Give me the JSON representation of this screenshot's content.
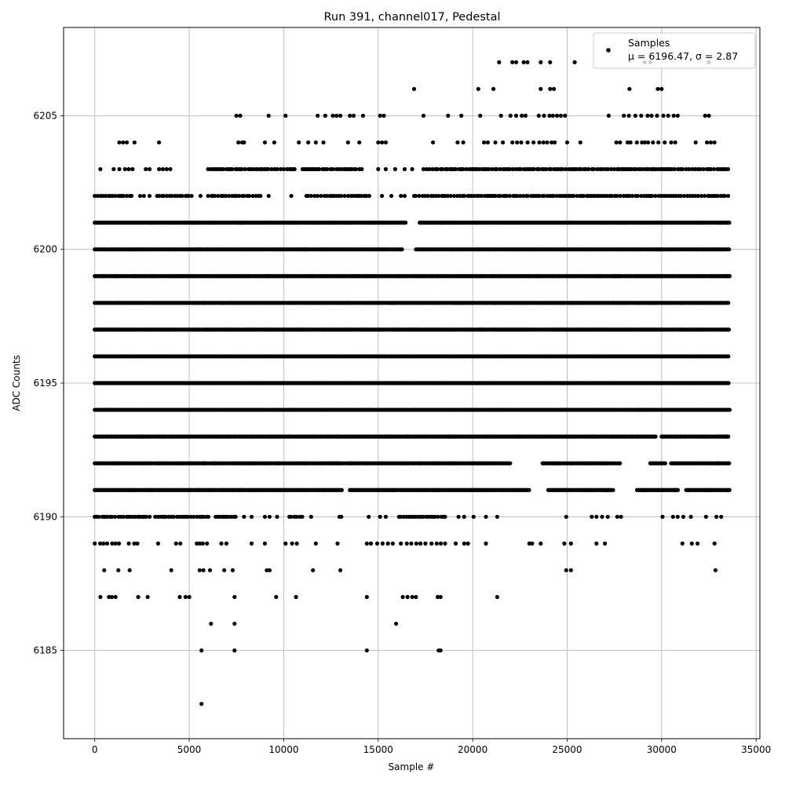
{
  "chart_data": {
    "type": "scatter",
    "title": "Run 391, channel017, Pedestal",
    "xlabel": "Sample #",
    "ylabel": "ADC Counts",
    "xlim": [
      -1650,
      35200
    ],
    "ylim": [
      6181.7,
      6208.3
    ],
    "xticks": [
      0,
      5000,
      10000,
      15000,
      20000,
      25000,
      30000,
      35000
    ],
    "yticks": [
      6185,
      6190,
      6195,
      6200,
      6205
    ],
    "grid": true,
    "legend": {
      "placement": "top-right",
      "entries": [
        "Samples",
        "μ = 6196.47, σ = 2.87"
      ]
    },
    "series": [
      {
        "name": "Samples",
        "color": "#000000",
        "marker": "circle",
        "x_range": [
          0,
          33600
        ],
        "sample_count": 33600,
        "mean": 6196.47,
        "sigma": 2.87,
        "level_occupancy": [
          {
            "y": 6183,
            "density": "single",
            "x": [
              5650
            ]
          },
          {
            "y": 6185,
            "density": "sparse",
            "x": [
              5650,
              7400,
              14400,
              18200,
              18300
            ]
          },
          {
            "y": 6186,
            "density": "sparse",
            "x": [
              6150,
              7400,
              15950
            ]
          },
          {
            "y": 6187,
            "density": "sparse",
            "x": [
              300,
              750,
              900,
              1100,
              2300,
              2800,
              4500,
              4800,
              5000,
              7400,
              9600,
              10650,
              14400,
              16300,
              16550,
              16800,
              17000,
              18150,
              18300,
              21300
            ]
          },
          {
            "y": 6188,
            "density": "sparse",
            "x": [
              500,
              1250,
              1850,
              4050,
              5550,
              5750,
              6100,
              6850,
              7300,
              9100,
              9250,
              11550,
              13000,
              24950,
              25200,
              32850
            ]
          },
          {
            "y": 6189,
            "density": "sparse",
            "x_ranges": [
              [
                0,
                1400
              ],
              [
                1800,
                2400
              ],
              [
                4300,
                4800
              ],
              [
                5400,
                6100
              ],
              [
                6700,
                7200
              ],
              [
                10100,
                11000
              ],
              [
                14400,
                15800
              ],
              [
                16200,
                18600
              ]
            ],
            "x": [
              3350,
              8300,
              9000,
              11700,
              12850,
              19100,
              19550,
              19750,
              20700,
              23000,
              23150,
              23600,
              24850,
              25200,
              26550,
              27000,
              31100,
              31600,
              31900,
              32800
            ]
          },
          {
            "y": 6190,
            "density": "medium",
            "x_ranges": [
              [
                0,
                3000
              ],
              [
                3200,
                6100
              ],
              [
                6400,
                7600
              ],
              [
                10300,
                11000
              ],
              [
                16100,
                18600
              ]
            ],
            "x": [
              7900,
              8300,
              9000,
              9250,
              9650,
              11450,
              12950,
              13050,
              14500,
              15100,
              15400,
              19250,
              19550,
              20050,
              20700,
              21300,
              24950,
              26300,
              26550,
              26850,
              27150,
              27650,
              27850,
              30050,
              30600,
              30850,
              31150,
              31550,
              32350,
              32900,
              33150
            ]
          },
          {
            "y": 6191,
            "density": "dense",
            "x_ranges": [
              [
                0,
                13100
              ],
              [
                13500,
                23000
              ],
              [
                24000,
                27500
              ],
              [
                28700,
                30900
              ],
              [
                31300,
                33600
              ]
            ]
          },
          {
            "y": 6192,
            "density": "dense",
            "x_ranges": [
              [
                0,
                22000
              ],
              [
                23700,
                27800
              ],
              [
                29400,
                30200
              ],
              [
                30500,
                33600
              ]
            ]
          },
          {
            "y": 6193,
            "density": "dense",
            "x_ranges": [
              [
                0,
                29700
              ],
              [
                30000,
                33600
              ]
            ]
          },
          {
            "y": 6194,
            "density": "dense",
            "x_ranges": [
              [
                0,
                33600
              ]
            ]
          },
          {
            "y": 6195,
            "density": "dense",
            "x_ranges": [
              [
                0,
                33600
              ]
            ]
          },
          {
            "y": 6196,
            "density": "dense",
            "x_ranges": [
              [
                0,
                33600
              ]
            ]
          },
          {
            "y": 6197,
            "density": "dense",
            "x_ranges": [
              [
                0,
                33600
              ]
            ]
          },
          {
            "y": 6198,
            "density": "dense",
            "x_ranges": [
              [
                0,
                33600
              ]
            ]
          },
          {
            "y": 6199,
            "density": "dense",
            "x_ranges": [
              [
                0,
                33600
              ]
            ]
          },
          {
            "y": 6200,
            "density": "dense",
            "x_ranges": [
              [
                0,
                16300
              ],
              [
                17000,
                33600
              ]
            ]
          },
          {
            "y": 6201,
            "density": "dense",
            "x_ranges": [
              [
                0,
                16500
              ],
              [
                17200,
                33600
              ]
            ]
          },
          {
            "y": 6202,
            "density": "medium",
            "x_ranges": [
              [
                0,
                2000
              ],
              [
                3300,
                5200
              ],
              [
                6000,
                8800
              ],
              [
                11200,
                14600
              ],
              [
                16900,
                33600
              ]
            ],
            "x": [
              2400,
              2600,
              2900,
              5600,
              9200,
              10400,
              15200,
              15700,
              16200,
              16400
            ]
          },
          {
            "y": 6203,
            "density": "medium",
            "x_ranges": [
              [
                6000,
                10600
              ],
              [
                11000,
                14200
              ],
              [
                17400,
                33600
              ]
            ],
            "x": [
              300,
              1000,
              1300,
              1600,
              1800,
              2000,
              2700,
              2900,
              3400,
              3600,
              3800,
              4000,
              15000,
              15400,
              15900,
              16400,
              16800
            ]
          },
          {
            "y": 6204,
            "density": "sparse",
            "x_ranges": [
              [
                22100,
                24500
              ],
              [
                28200,
                30800
              ]
            ],
            "x": [
              1300,
              1500,
              1700,
              2100,
              3400,
              7600,
              7800,
              7900,
              9000,
              9500,
              10800,
              11300,
              11700,
              12100,
              13400,
              14000,
              15000,
              15200,
              15400,
              17900,
              19200,
              19500,
              20600,
              20800,
              21200,
              21600,
              25000,
              25700,
              27600,
              27800,
              31800,
              32400,
              32600,
              32800
            ]
          },
          {
            "y": 6205,
            "density": "sparse",
            "x_ranges": [
              [
                23500,
                24900
              ],
              [
                28000,
                31000
              ]
            ],
            "x": [
              7500,
              7700,
              9200,
              10100,
              11800,
              12200,
              12600,
              12800,
              13000,
              13500,
              13700,
              14200,
              15100,
              15300,
              17400,
              18700,
              19400,
              20400,
              21500,
              22000,
              22300,
              22600,
              22800,
              27200,
              32300,
              32500
            ]
          },
          {
            "y": 6206,
            "density": "sparse",
            "x": [
              16900,
              20300,
              21100,
              23600,
              24100,
              24300,
              28300,
              29800,
              30000
            ]
          },
          {
            "y": 6207,
            "density": "sparse",
            "x": [
              21400,
              22100,
              22300,
              22700,
              22900,
              23600,
              24100,
              25400,
              29100,
              29400,
              32500
            ]
          }
        ]
      }
    ]
  }
}
